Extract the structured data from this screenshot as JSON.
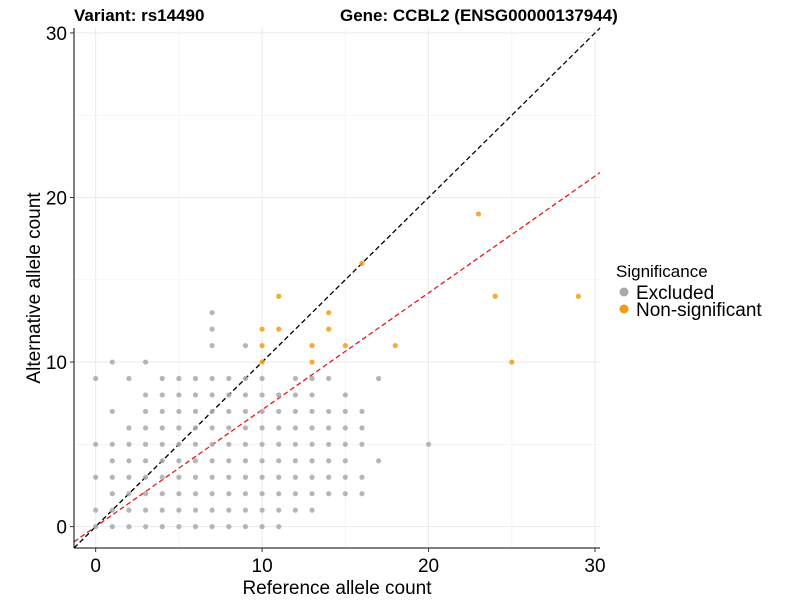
{
  "chart_data": {
    "type": "scatter",
    "title_left": "Variant: rs14490",
    "title_right": "Gene: CCBL2 (ENSG00000137944)",
    "xlabel": "Reference allele count",
    "ylabel": "Alternative allele count",
    "xlim": [
      -1.3,
      30.3
    ],
    "ylim": [
      -1.3,
      30.3
    ],
    "xticks": [
      0,
      10,
      20,
      30
    ],
    "yticks": [
      0,
      10,
      20,
      30
    ],
    "grid": true,
    "legend": {
      "title": "Significance",
      "position": "right",
      "entries": [
        {
          "label": "Excluded",
          "color": "#a9a9a9"
        },
        {
          "label": "Non-significant",
          "color": "#f39c12"
        }
      ]
    },
    "reference_lines": [
      {
        "intercept": 0,
        "slope": 1.0,
        "color": "#000000",
        "style": "dashed"
      },
      {
        "intercept": 0,
        "slope": 0.71,
        "color": "#e41a1c",
        "style": "dashed"
      }
    ],
    "series": [
      {
        "name": "Excluded",
        "color": "#a9a9a9",
        "points": [
          [
            0,
            0
          ],
          [
            0,
            1
          ],
          [
            0,
            3
          ],
          [
            0,
            5
          ],
          [
            0,
            9
          ],
          [
            1,
            0
          ],
          [
            1,
            1
          ],
          [
            1,
            2
          ],
          [
            1,
            3
          ],
          [
            1,
            4
          ],
          [
            1,
            5
          ],
          [
            1,
            7
          ],
          [
            1,
            10
          ],
          [
            2,
            0
          ],
          [
            2,
            1
          ],
          [
            2,
            2
          ],
          [
            2,
            3
          ],
          [
            2,
            4
          ],
          [
            2,
            5
          ],
          [
            2,
            6
          ],
          [
            2,
            9
          ],
          [
            3,
            0
          ],
          [
            3,
            1
          ],
          [
            3,
            2
          ],
          [
            3,
            3
          ],
          [
            3,
            4
          ],
          [
            3,
            5
          ],
          [
            3,
            6
          ],
          [
            3,
            7
          ],
          [
            3,
            8
          ],
          [
            3,
            10
          ],
          [
            4,
            0
          ],
          [
            4,
            1
          ],
          [
            4,
            2
          ],
          [
            4,
            3
          ],
          [
            4,
            4
          ],
          [
            4,
            5
          ],
          [
            4,
            6
          ],
          [
            4,
            7
          ],
          [
            4,
            8
          ],
          [
            4,
            9
          ],
          [
            5,
            0
          ],
          [
            5,
            1
          ],
          [
            5,
            2
          ],
          [
            5,
            3
          ],
          [
            5,
            4
          ],
          [
            5,
            5
          ],
          [
            5,
            6
          ],
          [
            5,
            7
          ],
          [
            5,
            8
          ],
          [
            5,
            9
          ],
          [
            6,
            0
          ],
          [
            6,
            1
          ],
          [
            6,
            2
          ],
          [
            6,
            3
          ],
          [
            6,
            4
          ],
          [
            6,
            5
          ],
          [
            6,
            6
          ],
          [
            6,
            7
          ],
          [
            6,
            8
          ],
          [
            6,
            9
          ],
          [
            7,
            0
          ],
          [
            7,
            1
          ],
          [
            7,
            2
          ],
          [
            7,
            3
          ],
          [
            7,
            4
          ],
          [
            7,
            5
          ],
          [
            7,
            6
          ],
          [
            7,
            7
          ],
          [
            7,
            8
          ],
          [
            7,
            9
          ],
          [
            7,
            11
          ],
          [
            7,
            12
          ],
          [
            7,
            13
          ],
          [
            8,
            0
          ],
          [
            8,
            1
          ],
          [
            8,
            2
          ],
          [
            8,
            3
          ],
          [
            8,
            4
          ],
          [
            8,
            5
          ],
          [
            8,
            6
          ],
          [
            8,
            7
          ],
          [
            8,
            8
          ],
          [
            8,
            9
          ],
          [
            9,
            0
          ],
          [
            9,
            1
          ],
          [
            9,
            2
          ],
          [
            9,
            3
          ],
          [
            9,
            4
          ],
          [
            9,
            5
          ],
          [
            9,
            6
          ],
          [
            9,
            7
          ],
          [
            9,
            8
          ],
          [
            9,
            9
          ],
          [
            9,
            11
          ],
          [
            10,
            0
          ],
          [
            10,
            1
          ],
          [
            10,
            2
          ],
          [
            10,
            3
          ],
          [
            10,
            4
          ],
          [
            10,
            5
          ],
          [
            10,
            6
          ],
          [
            10,
            7
          ],
          [
            10,
            8
          ],
          [
            10,
            9
          ],
          [
            11,
            0
          ],
          [
            11,
            1
          ],
          [
            11,
            2
          ],
          [
            11,
            3
          ],
          [
            11,
            4
          ],
          [
            11,
            5
          ],
          [
            11,
            6
          ],
          [
            11,
            7
          ],
          [
            11,
            8
          ],
          [
            12,
            1
          ],
          [
            12,
            2
          ],
          [
            12,
            3
          ],
          [
            12,
            4
          ],
          [
            12,
            5
          ],
          [
            12,
            6
          ],
          [
            12,
            7
          ],
          [
            12,
            8
          ],
          [
            12,
            9
          ],
          [
            13,
            1
          ],
          [
            13,
            2
          ],
          [
            13,
            3
          ],
          [
            13,
            4
          ],
          [
            13,
            5
          ],
          [
            13,
            6
          ],
          [
            13,
            7
          ],
          [
            13,
            8
          ],
          [
            13,
            9
          ],
          [
            14,
            2
          ],
          [
            14,
            3
          ],
          [
            14,
            4
          ],
          [
            14,
            5
          ],
          [
            14,
            6
          ],
          [
            14,
            7
          ],
          [
            14,
            9
          ],
          [
            15,
            2
          ],
          [
            15,
            3
          ],
          [
            15,
            4
          ],
          [
            15,
            5
          ],
          [
            15,
            6
          ],
          [
            15,
            7
          ],
          [
            15,
            8
          ],
          [
            16,
            2
          ],
          [
            16,
            3
          ],
          [
            16,
            5
          ],
          [
            16,
            6
          ],
          [
            16,
            7
          ],
          [
            17,
            4
          ],
          [
            17,
            9
          ],
          [
            20,
            5
          ]
        ]
      },
      {
        "name": "Non-significant",
        "color": "#f39c12",
        "points": [
          [
            10,
            10
          ],
          [
            10,
            11
          ],
          [
            10,
            12
          ],
          [
            11,
            12
          ],
          [
            11,
            14
          ],
          [
            13,
            10
          ],
          [
            13,
            11
          ],
          [
            14,
            12
          ],
          [
            14,
            13
          ],
          [
            15,
            11
          ],
          [
            16,
            16
          ],
          [
            18,
            11
          ],
          [
            23,
            19
          ],
          [
            24,
            14
          ],
          [
            25,
            10
          ],
          [
            29,
            14
          ]
        ]
      }
    ]
  }
}
